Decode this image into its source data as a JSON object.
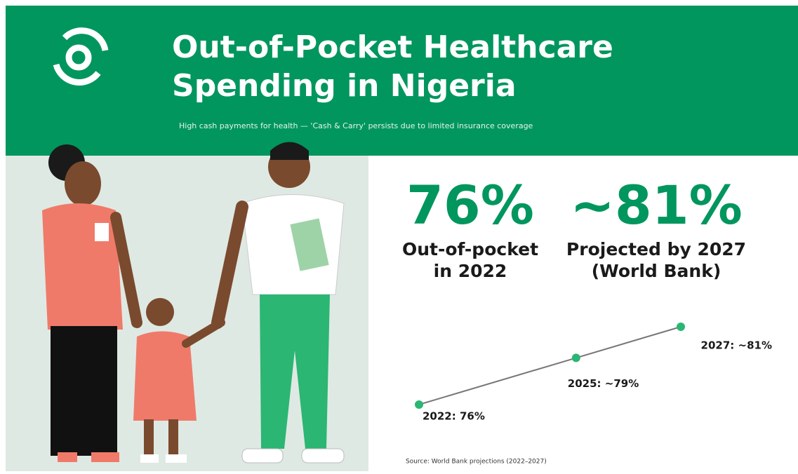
{
  "header": {
    "title": [
      "Out-of-Pocket Healthcare",
      "Spending in Nigeria"
    ],
    "subtitle": "High cash payments for health — 'Cash & Carry' persists due to limited insurance coverage"
  },
  "stats": [
    {
      "value": "76%",
      "caption": [
        "Out-of-pocket",
        "in 2022"
      ]
    },
    {
      "value": "~81%",
      "caption": [
        "Projected by 2027",
        "(World Bank)"
      ]
    }
  ],
  "chart_data": {
    "type": "line",
    "x": [
      2022,
      2025,
      2027
    ],
    "values": [
      76,
      79,
      81
    ],
    "value_labels": [
      "2022: 76%",
      "2025: ~79%",
      "2027: ~81%"
    ],
    "color": "#2bb673"
  },
  "source": "Source: World Bank projections (2022–2027)"
}
